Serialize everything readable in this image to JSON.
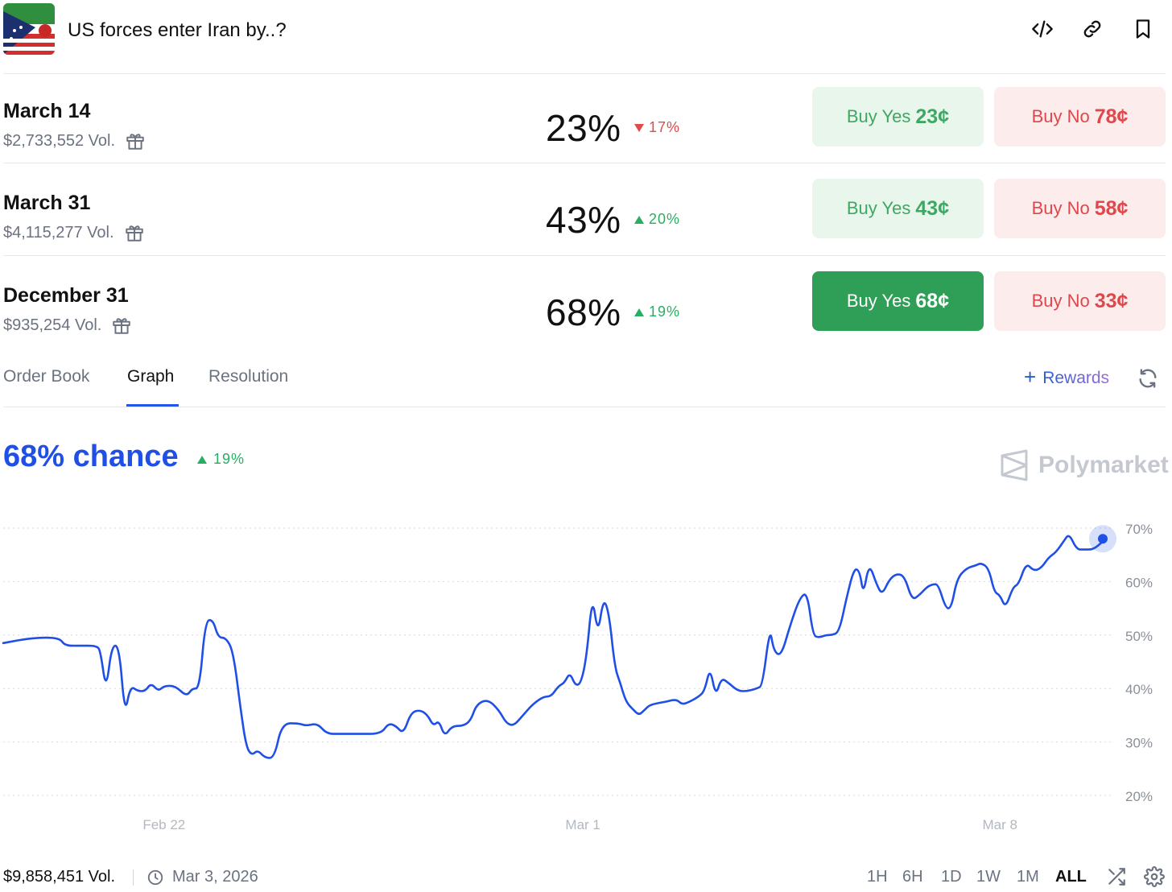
{
  "header": {
    "title": "US forces enter Iran by..?",
    "thumbnail_icon": "flags-thumbnail-icon",
    "icons": [
      "embed-code-icon",
      "link-icon",
      "bookmark-icon"
    ]
  },
  "outcomes": [
    {
      "name": "March 14",
      "volume": "$2,733,552 Vol.",
      "percent": "23%",
      "change": "17%",
      "direction": "down",
      "buy_yes_label": "Buy Yes",
      "buy_yes_price": "23¢",
      "buy_no_label": "Buy No",
      "buy_no_price": "78¢"
    },
    {
      "name": "March 31",
      "volume": "$4,115,277 Vol.",
      "percent": "43%",
      "change": "20%",
      "direction": "up",
      "buy_yes_label": "Buy Yes",
      "buy_yes_price": "43¢",
      "buy_no_label": "Buy No",
      "buy_no_price": "58¢"
    },
    {
      "name": "December 31",
      "volume": "$935,254 Vol.",
      "percent": "68%",
      "change": "19%",
      "direction": "up",
      "buy_yes_label": "Buy Yes",
      "buy_yes_price": "68¢",
      "buy_no_label": "Buy No",
      "buy_no_price": "33¢",
      "selected": true
    }
  ],
  "tabs": {
    "items": [
      "Order Book",
      "Graph",
      "Resolution"
    ],
    "active": "Graph",
    "rewards_label": "Rewards"
  },
  "chart_header": {
    "chance": "68% chance",
    "change": "19%",
    "brand": "Polymarket"
  },
  "chart_data": {
    "type": "line",
    "title": "",
    "xlabel": "",
    "ylabel": "",
    "x_ticks": [
      "Feb 22",
      "Mar 1",
      "Mar 8"
    ],
    "y_ticks": [
      "20%",
      "30%",
      "40%",
      "50%",
      "60%",
      "70%"
    ],
    "ylim": [
      20,
      70
    ],
    "grid": "horizontal-dotted",
    "series": [
      {
        "color": "#1f4fe6",
        "points": [
          [
            0,
            48.5
          ],
          [
            1.6,
            49.5
          ],
          [
            3.0,
            49.5
          ],
          [
            3.3,
            48
          ],
          [
            4.1,
            48
          ],
          [
            5.0,
            48
          ],
          [
            5.2,
            47
          ],
          [
            5.5,
            39.5
          ],
          [
            5.8,
            48
          ],
          [
            6.2,
            48
          ],
          [
            6.5,
            35
          ],
          [
            6.8,
            40.5
          ],
          [
            7.2,
            39.5
          ],
          [
            7.6,
            39.5
          ],
          [
            7.9,
            41
          ],
          [
            8.3,
            39.5
          ],
          [
            8.6,
            40.5
          ],
          [
            9.2,
            40.5
          ],
          [
            9.8,
            38.5
          ],
          [
            10.1,
            40
          ],
          [
            10.5,
            40
          ],
          [
            10.8,
            52.5
          ],
          [
            11.2,
            53
          ],
          [
            11.5,
            49.5
          ],
          [
            11.9,
            49.5
          ],
          [
            12.3,
            47
          ],
          [
            12.7,
            36
          ],
          [
            13.0,
            29
          ],
          [
            13.3,
            27.5
          ],
          [
            13.6,
            28.5
          ],
          [
            14.0,
            27
          ],
          [
            14.5,
            27
          ],
          [
            14.9,
            33.5
          ],
          [
            15.8,
            33.5
          ],
          [
            16.2,
            33
          ],
          [
            16.8,
            33.5
          ],
          [
            17.3,
            31.5
          ],
          [
            18.0,
            31.5
          ],
          [
            19.0,
            31.5
          ],
          [
            20.2,
            31.5
          ],
          [
            20.6,
            33.5
          ],
          [
            21.0,
            33
          ],
          [
            21.4,
            31.5
          ],
          [
            21.8,
            35.5
          ],
          [
            22.3,
            36
          ],
          [
            22.7,
            35
          ],
          [
            23.0,
            33
          ],
          [
            23.3,
            34
          ],
          [
            23.6,
            31
          ],
          [
            24.0,
            33
          ],
          [
            24.6,
            33
          ],
          [
            25.0,
            34
          ],
          [
            25.3,
            37
          ],
          [
            25.9,
            38
          ],
          [
            26.5,
            36
          ],
          [
            26.9,
            33.5
          ],
          [
            27.3,
            33
          ],
          [
            27.8,
            35
          ],
          [
            28.3,
            37
          ],
          [
            28.9,
            38.5
          ],
          [
            29.3,
            38.5
          ],
          [
            29.7,
            40.5
          ],
          [
            30.0,
            41
          ],
          [
            30.3,
            43
          ],
          [
            30.6,
            40.5
          ],
          [
            30.9,
            41
          ],
          [
            31.2,
            46
          ],
          [
            31.5,
            57.5
          ],
          [
            31.8,
            50
          ],
          [
            32.1,
            57
          ],
          [
            32.4,
            54
          ],
          [
            32.7,
            44
          ],
          [
            33.0,
            41
          ],
          [
            33.3,
            37.5
          ],
          [
            33.7,
            36
          ],
          [
            34.0,
            35
          ],
          [
            34.3,
            36
          ],
          [
            34.6,
            37
          ],
          [
            35.4,
            37.5
          ],
          [
            36.0,
            38
          ],
          [
            36.3,
            37
          ],
          [
            36.7,
            37.5
          ],
          [
            37.2,
            38.5
          ],
          [
            37.5,
            39.5
          ],
          [
            37.8,
            44
          ],
          [
            38.1,
            38.5
          ],
          [
            38.4,
            42
          ],
          [
            38.8,
            41
          ],
          [
            39.3,
            39.5
          ],
          [
            39.8,
            39.5
          ],
          [
            40.3,
            40
          ],
          [
            40.6,
            40.5
          ],
          [
            41.0,
            51.5
          ],
          [
            41.2,
            47
          ],
          [
            41.6,
            46
          ],
          [
            42.1,
            52
          ],
          [
            42.6,
            57
          ],
          [
            43.0,
            58
          ],
          [
            43.3,
            50
          ],
          [
            43.6,
            49.5
          ],
          [
            44.0,
            50
          ],
          [
            44.3,
            50
          ],
          [
            44.7,
            50.5
          ],
          [
            45.1,
            57
          ],
          [
            45.5,
            62.5
          ],
          [
            45.8,
            62
          ],
          [
            46.0,
            57.5
          ],
          [
            46.3,
            63.5
          ],
          [
            46.7,
            59.5
          ],
          [
            47.0,
            57.5
          ],
          [
            47.4,
            60.5
          ],
          [
            47.8,
            61.5
          ],
          [
            48.2,
            61
          ],
          [
            48.6,
            56.5
          ],
          [
            49.0,
            57.5
          ],
          [
            49.4,
            59
          ],
          [
            49.7,
            59.5
          ],
          [
            50.0,
            59.5
          ],
          [
            50.4,
            55
          ],
          [
            50.7,
            55
          ],
          [
            51.0,
            60.5
          ],
          [
            51.5,
            62.5
          ],
          [
            52.0,
            63
          ],
          [
            52.3,
            63.5
          ],
          [
            52.7,
            62.5
          ],
          [
            53.0,
            58
          ],
          [
            53.3,
            57.5
          ],
          [
            53.6,
            55
          ],
          [
            54.0,
            59
          ],
          [
            54.3,
            59.5
          ],
          [
            54.7,
            63.5
          ],
          [
            55.1,
            62
          ],
          [
            55.5,
            62.5
          ],
          [
            55.9,
            64.5
          ],
          [
            56.3,
            65.5
          ],
          [
            56.7,
            67.5
          ],
          [
            57.0,
            69
          ],
          [
            57.4,
            66
          ],
          [
            57.8,
            66
          ],
          [
            58.3,
            66
          ],
          [
            58.8,
            67.5
          ]
        ]
      }
    ],
    "current_value": 68
  },
  "footer": {
    "volume": "$9,858,451 Vol.",
    "date": "Mar 3, 2026",
    "ranges": [
      "1H",
      "6H",
      "1D",
      "1W",
      "1M",
      "ALL"
    ],
    "active_range": "ALL"
  },
  "colors": {
    "accent_blue": "#1f4fe6",
    "green": "#27ae60",
    "red": "#e04a4a",
    "buy_yes_active": "#2f9e56"
  }
}
